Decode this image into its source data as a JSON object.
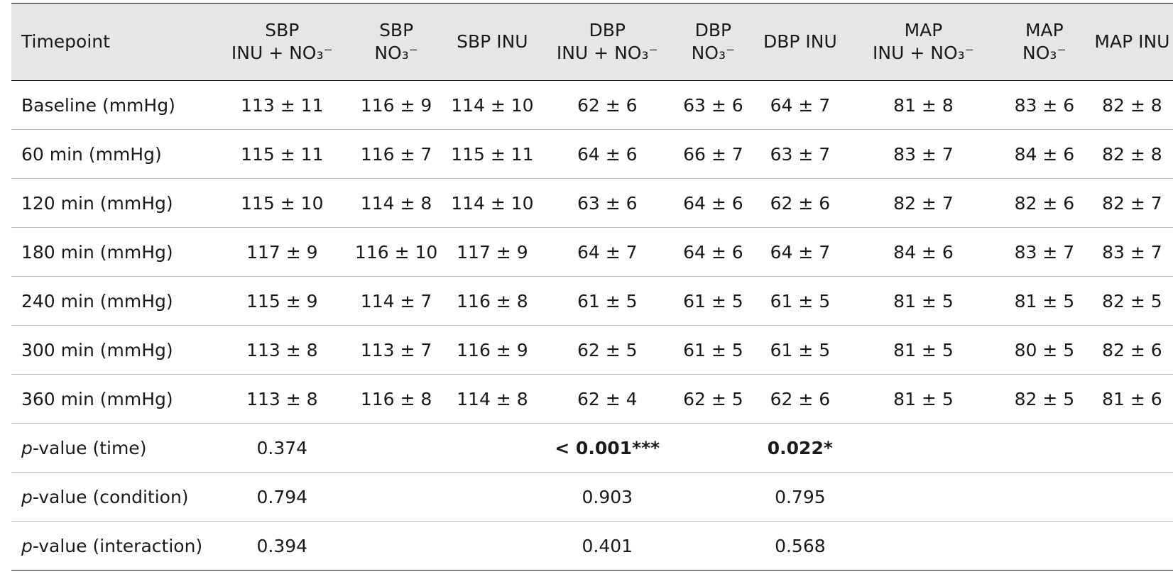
{
  "table": {
    "headers": [
      {
        "line1": "Timepoint",
        "line2": ""
      },
      {
        "line1": "SBP",
        "line2": "INU + NO₃⁻"
      },
      {
        "line1": "SBP",
        "line2": "NO₃⁻"
      },
      {
        "line1": "",
        "line2": "SBP INU"
      },
      {
        "line1": "DBP",
        "line2": "INU + NO₃⁻"
      },
      {
        "line1": "DBP",
        "line2": "NO₃⁻"
      },
      {
        "line1": "",
        "line2": "DBP INU"
      },
      {
        "line1": "MAP",
        "line2": "INU + NO₃⁻"
      },
      {
        "line1": "MAP",
        "line2": "NO₃⁻"
      },
      {
        "line1": "",
        "line2": "MAP INU"
      }
    ],
    "rows": [
      {
        "label": "Baseline (mmHg)",
        "cells": [
          "113 ± 11",
          "116 ± 9",
          "114 ± 10",
          "62 ± 6",
          "63 ± 6",
          "64 ± 7",
          "81 ± 8",
          "83 ± 6",
          "82 ± 8"
        ]
      },
      {
        "label": "60 min (mmHg)",
        "cells": [
          "115 ± 11",
          "116 ± 7",
          "115 ± 11",
          "64 ± 6",
          "66 ± 7",
          "63 ± 7",
          "83 ± 7",
          "84 ± 6",
          "82 ± 8"
        ]
      },
      {
        "label": "120 min (mmHg)",
        "cells": [
          "115 ± 10",
          "114 ± 8",
          "114 ± 10",
          "63 ± 6",
          "64 ± 6",
          "62 ± 6",
          "82 ± 7",
          "82 ± 6",
          "82 ± 7"
        ]
      },
      {
        "label": "180 min (mmHg)",
        "cells": [
          "117 ± 9",
          "116 ± 10",
          "117 ± 9",
          "64 ± 7",
          "64 ± 6",
          "64 ± 7",
          "84 ± 6",
          "83 ± 7",
          "83 ± 7"
        ]
      },
      {
        "label": "240 min (mmHg)",
        "cells": [
          "115 ± 9",
          "114 ± 7",
          "116 ± 8",
          "61 ± 5",
          "61 ± 5",
          "61 ± 5",
          "81 ± 5",
          "81 ± 5",
          "82 ± 5"
        ]
      },
      {
        "label": "300 min (mmHg)",
        "cells": [
          "113 ± 8",
          "113 ± 7",
          "116 ± 9",
          "62 ± 5",
          "61 ± 5",
          "61 ± 5",
          "81 ± 5",
          "80 ± 5",
          "82 ± 6"
        ]
      },
      {
        "label": "360 min (mmHg)",
        "cells": [
          "113 ± 8",
          "116 ± 8",
          "114 ± 8",
          "62 ± 4",
          "62 ± 5",
          "62 ± 6",
          "81 ± 5",
          "82 ± 5",
          "81 ± 6"
        ]
      }
    ],
    "pvalue_rows": [
      {
        "label_italic": "p",
        "label_rest": "-value (time)",
        "sbp": "0.374",
        "dbp": "< 0.001***",
        "map": "0.022*"
      },
      {
        "label_italic": "p",
        "label_rest": "-value (condition)",
        "sbp": "0.794",
        "dbp": "0.903",
        "map": "0.795"
      },
      {
        "label_italic": "p",
        "label_rest": "-value (interaction)",
        "sbp": "0.394",
        "dbp": "0.401",
        "map": "0.568"
      }
    ]
  }
}
